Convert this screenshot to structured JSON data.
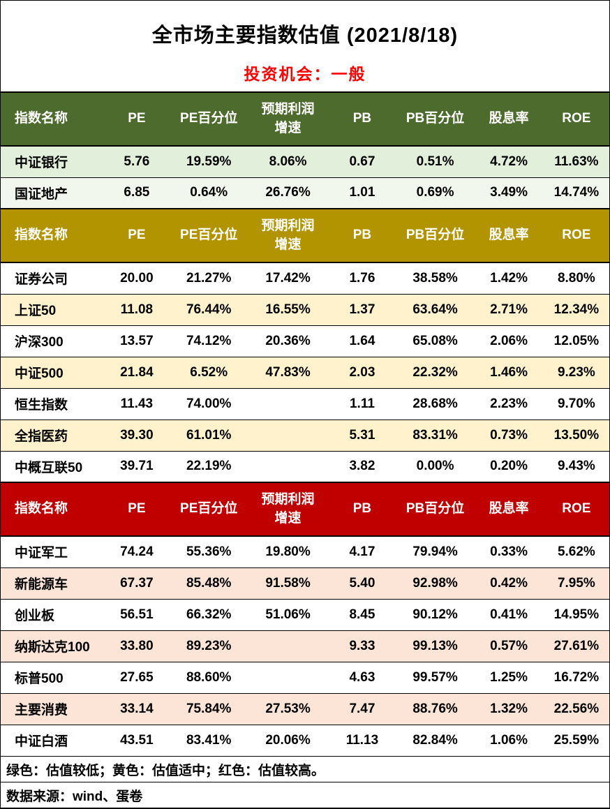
{
  "title": "全市场主要指数估值 (2021/8/18)",
  "subtitle": "投资机会：一般",
  "colors": {
    "subtitle": "#ff0000",
    "border": "#000000",
    "green_header": "#4e6b2e",
    "yellow_header": "#b29400",
    "red_header": "#c00000"
  },
  "chart_data": {
    "type": "table",
    "title": "全市场主要指数估值 (2021/8/18)",
    "columns": [
      "指数名称",
      "PE",
      "PE百分位",
      "预期利润\n增速",
      "PB",
      "PB百分位",
      "股息率",
      "ROE"
    ],
    "sections": [
      {
        "id": "green-low-valuation",
        "header_color": "#4e6b2e",
        "row_colors": [
          "#e2efda",
          "#f2f7ed"
        ],
        "rows": [
          [
            "中证银行",
            "5.76",
            "19.59%",
            "8.06%",
            "0.67",
            "0.51%",
            "4.72%",
            "11.63%"
          ],
          [
            "国证地产",
            "6.85",
            "0.64%",
            "26.76%",
            "1.01",
            "0.69%",
            "3.49%",
            "14.74%"
          ]
        ]
      },
      {
        "id": "yellow-medium-valuation",
        "header_color": "#b29400",
        "row_colors": [
          "#ffffff",
          "#fff2cc"
        ],
        "rows": [
          [
            "证券公司",
            "20.00",
            "21.27%",
            "17.42%",
            "1.76",
            "38.58%",
            "1.42%",
            "8.80%"
          ],
          [
            "上证50",
            "11.08",
            "76.44%",
            "16.55%",
            "1.37",
            "63.64%",
            "2.71%",
            "12.34%"
          ],
          [
            "沪深300",
            "13.57",
            "74.12%",
            "20.36%",
            "1.64",
            "65.08%",
            "2.06%",
            "12.05%"
          ],
          [
            "中证500",
            "21.84",
            "6.52%",
            "47.83%",
            "2.03",
            "22.32%",
            "1.46%",
            "9.23%"
          ],
          [
            "恒生指数",
            "11.43",
            "74.00%",
            "",
            "1.11",
            "28.68%",
            "2.23%",
            "9.70%"
          ],
          [
            "全指医药",
            "39.30",
            "61.01%",
            "",
            "5.31",
            "83.31%",
            "0.73%",
            "13.50%"
          ],
          [
            "中概互联50",
            "39.71",
            "22.19%",
            "",
            "3.82",
            "0.00%",
            "0.20%",
            "9.43%"
          ]
        ]
      },
      {
        "id": "red-high-valuation",
        "header_color": "#c00000",
        "row_colors": [
          "#ffffff",
          "#fce4d6"
        ],
        "rows": [
          [
            "中证军工",
            "74.24",
            "55.36%",
            "19.80%",
            "4.17",
            "79.94%",
            "0.33%",
            "5.62%"
          ],
          [
            "新能源车",
            "67.37",
            "85.48%",
            "91.58%",
            "5.40",
            "92.98%",
            "0.42%",
            "7.95%"
          ],
          [
            "创业板",
            "56.51",
            "66.32%",
            "51.06%",
            "8.45",
            "90.12%",
            "0.41%",
            "14.95%"
          ],
          [
            "纳斯达克100",
            "33.80",
            "89.23%",
            "",
            "9.33",
            "99.13%",
            "0.57%",
            "27.61%"
          ],
          [
            "标普500",
            "27.65",
            "88.60%",
            "",
            "4.63",
            "99.57%",
            "1.25%",
            "16.72%"
          ],
          [
            "主要消费",
            "33.14",
            "75.84%",
            "27.53%",
            "7.47",
            "88.76%",
            "1.32%",
            "22.56%"
          ],
          [
            "中证白酒",
            "43.51",
            "83.41%",
            "20.06%",
            "11.13",
            "82.84%",
            "1.06%",
            "25.59%"
          ]
        ]
      }
    ]
  },
  "footer": {
    "legend": "绿色：估值较低；黄色：估值适中；红色：估值较高。",
    "source": "数据来源：wind、蛋卷"
  }
}
